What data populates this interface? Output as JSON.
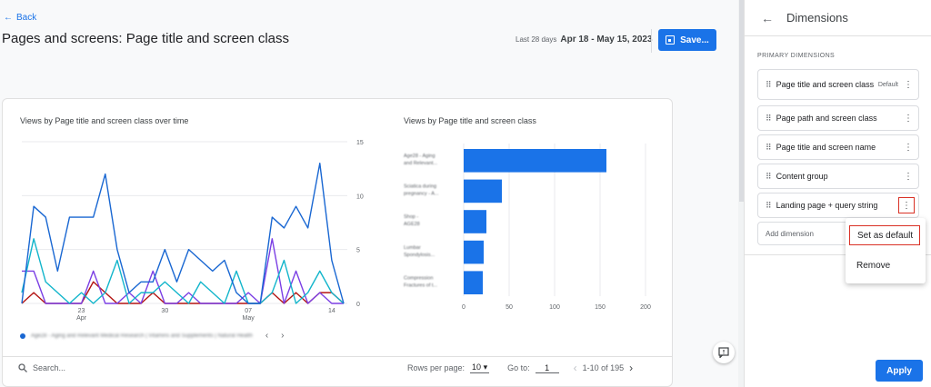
{
  "header": {
    "back_label": "Back",
    "title": "Pages and screens: Page title and screen class",
    "date_label": "Last 28 days",
    "date_range": "Apr 18 - May 15, 2023",
    "save_label": "Save..."
  },
  "line_chart": {
    "title": "Views by Page title and screen class over time",
    "yticks": [
      "15",
      "10",
      "5",
      "0"
    ],
    "xticks": [
      {
        "day": "23",
        "month": "Apr"
      },
      {
        "day": "30",
        "month": ""
      },
      {
        "day": "07",
        "month": "May"
      },
      {
        "day": "14",
        "month": ""
      }
    ],
    "legend_text": "Age28 - Aging and Relevant Medical Research | Vitamins and Supplements | Natural Health",
    "legend_color": "#1967d2"
  },
  "bar_chart": {
    "title": "Views by Page title and screen class",
    "categories": [
      "Age28 - Aging and Relevant...",
      "Sciatica during pregnancy - A...",
      "Shop - AGE28",
      "Lumbar Spondylosis...",
      "Compression Fractures of t..."
    ],
    "xticks": [
      "0",
      "50",
      "100",
      "150",
      "200"
    ]
  },
  "chart_data": [
    {
      "type": "line",
      "title": "Views by Page title and screen class over time",
      "x": [
        "Apr 18",
        "Apr 19",
        "Apr 20",
        "Apr 21",
        "Apr 22",
        "Apr 23",
        "Apr 24",
        "Apr 25",
        "Apr 26",
        "Apr 27",
        "Apr 28",
        "Apr 29",
        "Apr 30",
        "May 01",
        "May 02",
        "May 03",
        "May 04",
        "May 05",
        "May 06",
        "May 07",
        "May 08",
        "May 09",
        "May 10",
        "May 11",
        "May 12",
        "May 13",
        "May 14",
        "May 15"
      ],
      "ylim": [
        0,
        15
      ],
      "series": [
        {
          "color": "#1967d2",
          "values": [
            0,
            9,
            8,
            3,
            8,
            8,
            8,
            12,
            5,
            1,
            2,
            2,
            5,
            2,
            5,
            4,
            3,
            4,
            1,
            0,
            0,
            8,
            7,
            9,
            7,
            13,
            4,
            0
          ]
        },
        {
          "color": "#12b5cb",
          "values": [
            1,
            6,
            2,
            1,
            0,
            1,
            0,
            1,
            4,
            0,
            1,
            1,
            2,
            1,
            0,
            2,
            1,
            0,
            3,
            0,
            0,
            1,
            4,
            0,
            1,
            3,
            1,
            0
          ]
        },
        {
          "color": "#7b3fe4",
          "values": [
            3,
            3,
            0,
            0,
            0,
            0,
            3,
            0,
            0,
            1,
            0,
            3,
            0,
            0,
            1,
            0,
            0,
            0,
            0,
            1,
            0,
            6,
            0,
            3,
            0,
            1,
            0,
            0
          ]
        },
        {
          "color": "#b31412",
          "values": [
            0,
            1,
            0,
            0,
            0,
            0,
            2,
            1,
            0,
            0,
            0,
            1,
            0,
            0,
            0,
            0,
            0,
            0,
            0,
            0,
            0,
            1,
            0,
            1,
            0,
            1,
            1,
            0
          ]
        }
      ]
    },
    {
      "type": "bar",
      "title": "Views by Page title and screen class",
      "orientation": "horizontal",
      "categories": [
        "Age28 - Aging and Relevant...",
        "Sciatica during pregnancy - A...",
        "Shop - AGE28",
        "Lumbar Spondylosis...",
        "Compression Fractures of t..."
      ],
      "values": [
        157,
        42,
        25,
        22,
        21
      ],
      "xlim": [
        0,
        200
      ],
      "color": "#1a73e8"
    }
  ],
  "table_controls": {
    "search_placeholder": "Search...",
    "rows_label": "Rows per page:",
    "rows_value": "10",
    "goto_label": "Go to:",
    "goto_value": "1",
    "range_text": "1-10 of 195"
  },
  "panel": {
    "title": "Dimensions",
    "section_label": "PRIMARY DIMENSIONS",
    "dimensions": [
      {
        "label": "Page title and screen class",
        "badge": "Default"
      },
      {
        "label": "Page path and screen class",
        "badge": ""
      },
      {
        "label": "Page title and screen name",
        "badge": ""
      },
      {
        "label": "Content group",
        "badge": ""
      },
      {
        "label": "Landing page + query string",
        "badge": ""
      }
    ],
    "add_dimension": "Add dimension",
    "menu": [
      "Set as default",
      "Remove"
    ],
    "apply_label": "Apply"
  },
  "icons": {
    "back": "arrow-left-icon",
    "save": "save-icon",
    "search": "search-icon",
    "feedback": "feedback-icon",
    "grip": "drag-handle-icon",
    "more": "more-vert-icon"
  }
}
